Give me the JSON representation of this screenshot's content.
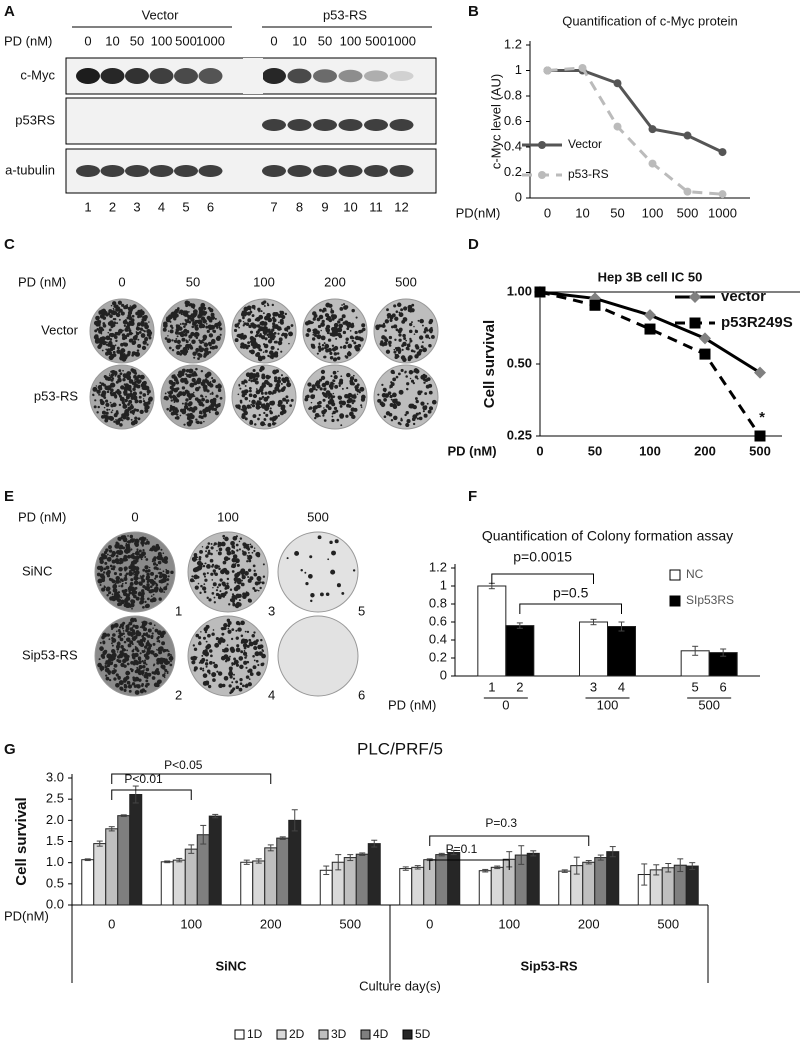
{
  "panel_labels": [
    "A",
    "B",
    "C",
    "D",
    "E",
    "F",
    "G"
  ],
  "blot": {
    "pd_label": "PD (nM)",
    "groups": [
      "Vector",
      "p53-RS"
    ],
    "doses": [
      "0",
      "10",
      "50",
      "100",
      "500",
      "1000",
      "0",
      "10",
      "50",
      "100",
      "500",
      "1000"
    ],
    "rows": [
      "c-Myc",
      "p53RS",
      "a-tubulin"
    ],
    "lanes": [
      "1",
      "2",
      "3",
      "4",
      "5",
      "6",
      "7",
      "8",
      "9",
      "10",
      "11",
      "12"
    ]
  },
  "colony_c": {
    "pd_label": "PD (nM)",
    "doses": [
      "0",
      "50",
      "100",
      "200",
      "500"
    ],
    "rows": [
      "Vector",
      "p53-RS"
    ]
  },
  "colony_e": {
    "pd_label": "PD (nM)",
    "doses": [
      "0",
      "100",
      "500"
    ],
    "rows": [
      "SiNC",
      "Sip53-RS"
    ],
    "numbers": [
      "1",
      "3",
      "5",
      "2",
      "4",
      "6"
    ]
  },
  "chart_data": [
    {
      "type": "line",
      "title": "Quantification of c-Myc protein",
      "ylabel": "c-Myc level (AU)",
      "xlabel": "PD(nM)",
      "categories": [
        "0",
        "10",
        "50",
        "100",
        "500",
        "1000"
      ],
      "series": [
        {
          "name": "Vector",
          "color": "#555555",
          "dashed": false,
          "marker": "circle",
          "values": [
            1,
            1,
            0.9,
            0.54,
            0.49,
            0.36
          ]
        },
        {
          "name": "p53-RS",
          "color": "#bbbbbb",
          "dashed": true,
          "marker": "circle",
          "values": [
            1,
            1.02,
            0.56,
            0.27,
            0.05,
            0.03
          ]
        }
      ],
      "ylim": [
        0,
        1.2
      ],
      "yticks": [
        0,
        0.2,
        0.4,
        0.6,
        0.8,
        1,
        1.2
      ],
      "legend": "left",
      "yscale": "linear"
    },
    {
      "type": "line",
      "title": "Hep 3B cell IC 50",
      "ylabel": "Cell survival",
      "xlabel": "PD (nM)",
      "categories": [
        "0",
        "50",
        "100",
        "200",
        "500"
      ],
      "series": [
        {
          "name": "vector",
          "color": "#808080",
          "line_color": "#000000",
          "dashed": false,
          "marker": "diamond",
          "values": [
            1,
            0.94,
            0.8,
            0.64,
            0.46
          ]
        },
        {
          "name": "p53R249S",
          "color": "#000000",
          "line_color": "#000000",
          "dashed": true,
          "marker": "square",
          "values": [
            1,
            0.88,
            0.7,
            0.55,
            0.25
          ]
        }
      ],
      "ylim": [
        0.25,
        1
      ],
      "yticks": [
        {
          "value": 1,
          "label": "1.00"
        },
        {
          "value": 0.5,
          "label": "0.50"
        },
        {
          "value": 0.25,
          "label": "0.25"
        }
      ],
      "yscale": "log",
      "legend": "upper right",
      "annotations": [
        "*"
      ]
    },
    {
      "type": "bar",
      "title": "Quantification of Colony  formation assay",
      "category_axis_label": "PD (nM)",
      "categories": [
        "0",
        "100",
        "500"
      ],
      "bar_labels": [
        "1",
        "2",
        "3",
        "4",
        "5",
        "6"
      ],
      "series": [
        {
          "name": "NC",
          "color": "#ffffff",
          "values": [
            1,
            0.6,
            0.28
          ],
          "errors": [
            0.03,
            0.03,
            0.05
          ]
        },
        {
          "name": "SIp53RS",
          "color": "#000000",
          "values": [
            0.56,
            0.55,
            0.26
          ],
          "errors": [
            0.03,
            0.05,
            0.04
          ]
        }
      ],
      "ylim": [
        0,
        1.2
      ],
      "yticks": [
        0,
        0.2,
        0.4,
        0.6,
        0.8,
        1,
        1.2
      ],
      "legend": "right",
      "annotations": [
        "p=0.0015",
        "p=0.5"
      ]
    },
    {
      "type": "bar",
      "title": "PLC/PRF/5",
      "ylabel": "Cell survival",
      "xlabel": "Culture day(s)",
      "category_axis_label": "PD(nM)",
      "categories": [
        "0",
        "100",
        "200",
        "500",
        "0",
        "100",
        "200",
        "500"
      ],
      "group_labels": [
        "SiNC",
        "Sip53-RS"
      ],
      "series": [
        {
          "name": "1D",
          "color": "#ffffff",
          "values": [
            1.07,
            1.02,
            1.01,
            0.82,
            0.86,
            0.81,
            0.8,
            0.72
          ],
          "errors": [
            0.02,
            0.02,
            0.05,
            0.1,
            0.04,
            0.03,
            0.03,
            0.25
          ]
        },
        {
          "name": "2D",
          "color": "#d9d9d9",
          "values": [
            1.45,
            1.06,
            1.04,
            1.01,
            0.89,
            0.89,
            0.93,
            0.83
          ],
          "errors": [
            0.06,
            0.04,
            0.05,
            0.18,
            0.04,
            0.03,
            0.2,
            0.12
          ]
        },
        {
          "name": "3D",
          "color": "#bfbfbf",
          "values": [
            1.8,
            1.32,
            1.35,
            1.12,
            1.07,
            1.08,
            1.01,
            0.88
          ],
          "errors": [
            0.05,
            0.1,
            0.07,
            0.07,
            0.02,
            0.18,
            0.04,
            0.1
          ]
        },
        {
          "name": "4D",
          "color": "#7f7f7f",
          "values": [
            2.11,
            1.66,
            1.58,
            1.2,
            1.19,
            1.18,
            1.12,
            0.94
          ],
          "errors": [
            0.02,
            0.22,
            0.03,
            0.03,
            0.03,
            0.22,
            0.06,
            0.15
          ]
        },
        {
          "name": "5D",
          "color": "#262626",
          "values": [
            2.61,
            2.1,
            2,
            1.45,
            1.24,
            1.22,
            1.26,
            0.92
          ],
          "errors": [
            0.2,
            0.04,
            0.25,
            0.08,
            0.05,
            0.06,
            0.12,
            0.08
          ]
        }
      ],
      "ylim": [
        0,
        3
      ],
      "yticks": [
        {
          "value": 0,
          "label": "0.0"
        },
        0.5,
        {
          "value": 1,
          "label": "1.0"
        },
        1.5,
        {
          "value": 2,
          "label": "2.0"
        },
        2.5,
        {
          "value": 3,
          "label": "3.0"
        }
      ],
      "legend": "bottom",
      "annotations": [
        "P<0.01",
        "P<0.05",
        "P=0.1",
        "P=0.3"
      ]
    }
  ]
}
